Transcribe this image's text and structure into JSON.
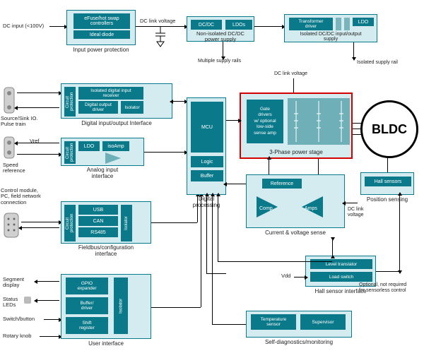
{
  "colors": {
    "teal": "#0a7a8a",
    "light": "#d4ecef",
    "red": "#d40000",
    "text": "#222222",
    "bg": "#ffffff"
  },
  "dc_input": "DC input (<100V)",
  "input_power": {
    "efuse": "eFuse/hot swap\ncontrollers",
    "ideal_diode": "Ideal diode",
    "caption": "Input power protection"
  },
  "dc_link": "DC link voltage",
  "non_iso": {
    "dcdc": "DC/DC",
    "ldos": "LDOs",
    "caption": "Non-isolated DC/DC\npower supply"
  },
  "multiple_rails": "Multiple supply rails",
  "iso_supply": {
    "xfmr": "Transformer\ndriver",
    "ldo": "LDO",
    "caption": "Isolated DC/DC input/output\nsupply"
  },
  "isolated_rail": "Isolated supply rail",
  "dio": {
    "circuit": "Circuit\nprotection",
    "receiver": "Isolated digital input\nreceiver",
    "dout": "Digital output\ndriver",
    "isolator": "Isolator",
    "caption": "Digital input/output Interface"
  },
  "source_sink": "Source/Sink IO.\nPulse train",
  "vref": "Vref",
  "analog_in": {
    "circuit": "Circuit\nprotection",
    "ldo": "LDO",
    "isoamp": "isoAmp",
    "caption": "Analog input\ninterface"
  },
  "speed_ref": "Speed\nreference",
  "control_module": "Control module,\nPC, field network\nconnection",
  "fieldbus": {
    "circuit": "Circuit\nprotection",
    "usb": "USB",
    "can": "CAN",
    "rs485": "RS485",
    "isolator": "Isolator",
    "caption": "Fieldbus/configuration\ninterface"
  },
  "ui_labels": {
    "seg": "Segment\ndisplay",
    "status": "Status\nLEDs",
    "switch": "Switch/button",
    "rotary": "Rotary knob"
  },
  "ui": {
    "gpio": "GPIO\nexpander",
    "buffer": "Buffer/\ndriver",
    "shift": "Shift\nregister",
    "isolator": "Isolator",
    "caption": "User interface"
  },
  "dp": {
    "mcu": "MCU",
    "logic": "Logic",
    "buffer": "Buffer",
    "caption": "Digital\nprocessing"
  },
  "power_stage": {
    "gate": "Gate\ndrivers\nw/ optional\nlow-side\nsense amp",
    "caption": "3-Phase power stage"
  },
  "dc_link2": "DC link voltage",
  "bldc": "BLDC",
  "cv_sense": {
    "ref": "Reference",
    "comp": "Comp",
    "amps": "Amps",
    "caption": "Current & voltage sense"
  },
  "dc_link3": "DC link\nvoltage",
  "hall_if": {
    "level": "Level translator",
    "load": "Load switch",
    "caption": "Hall sensor interface"
  },
  "vdd": "Vdd",
  "optional": "Optional, not required\nfor sensorless control",
  "position": {
    "hall": "Hall sensors",
    "caption": "Position sensing"
  },
  "selfdiag": {
    "temp": "Temperature\nsensor",
    "sup": "Supervisor",
    "caption": "Self-diagnostics/monitoring"
  }
}
